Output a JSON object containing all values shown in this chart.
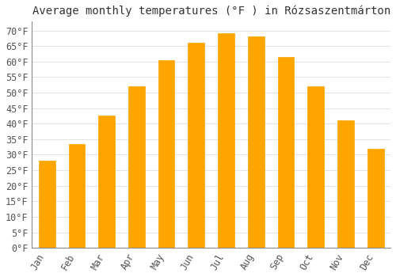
{
  "title": "Average monthly temperatures (°F ) in Rózsaszentmárton",
  "months": [
    "Jan",
    "Feb",
    "Mar",
    "Apr",
    "May",
    "Jun",
    "Jul",
    "Aug",
    "Sep",
    "Oct",
    "Nov",
    "Dec"
  ],
  "values": [
    28,
    33.5,
    42.5,
    52,
    60.5,
    66,
    69,
    68,
    61.5,
    52,
    41,
    32
  ],
  "bar_color": "#FFA500",
  "bar_edge_color": "#FFB833",
  "bar_color_dark": "#FF9500",
  "background_color": "#FFFFFF",
  "grid_color": "#DDDDDD",
  "ylim": [
    0,
    73
  ],
  "yticks": [
    0,
    5,
    10,
    15,
    20,
    25,
    30,
    35,
    40,
    45,
    50,
    55,
    60,
    65,
    70
  ],
  "ylabel_suffix": "°F",
  "title_fontsize": 10,
  "tick_fontsize": 8.5,
  "bar_width": 0.55
}
